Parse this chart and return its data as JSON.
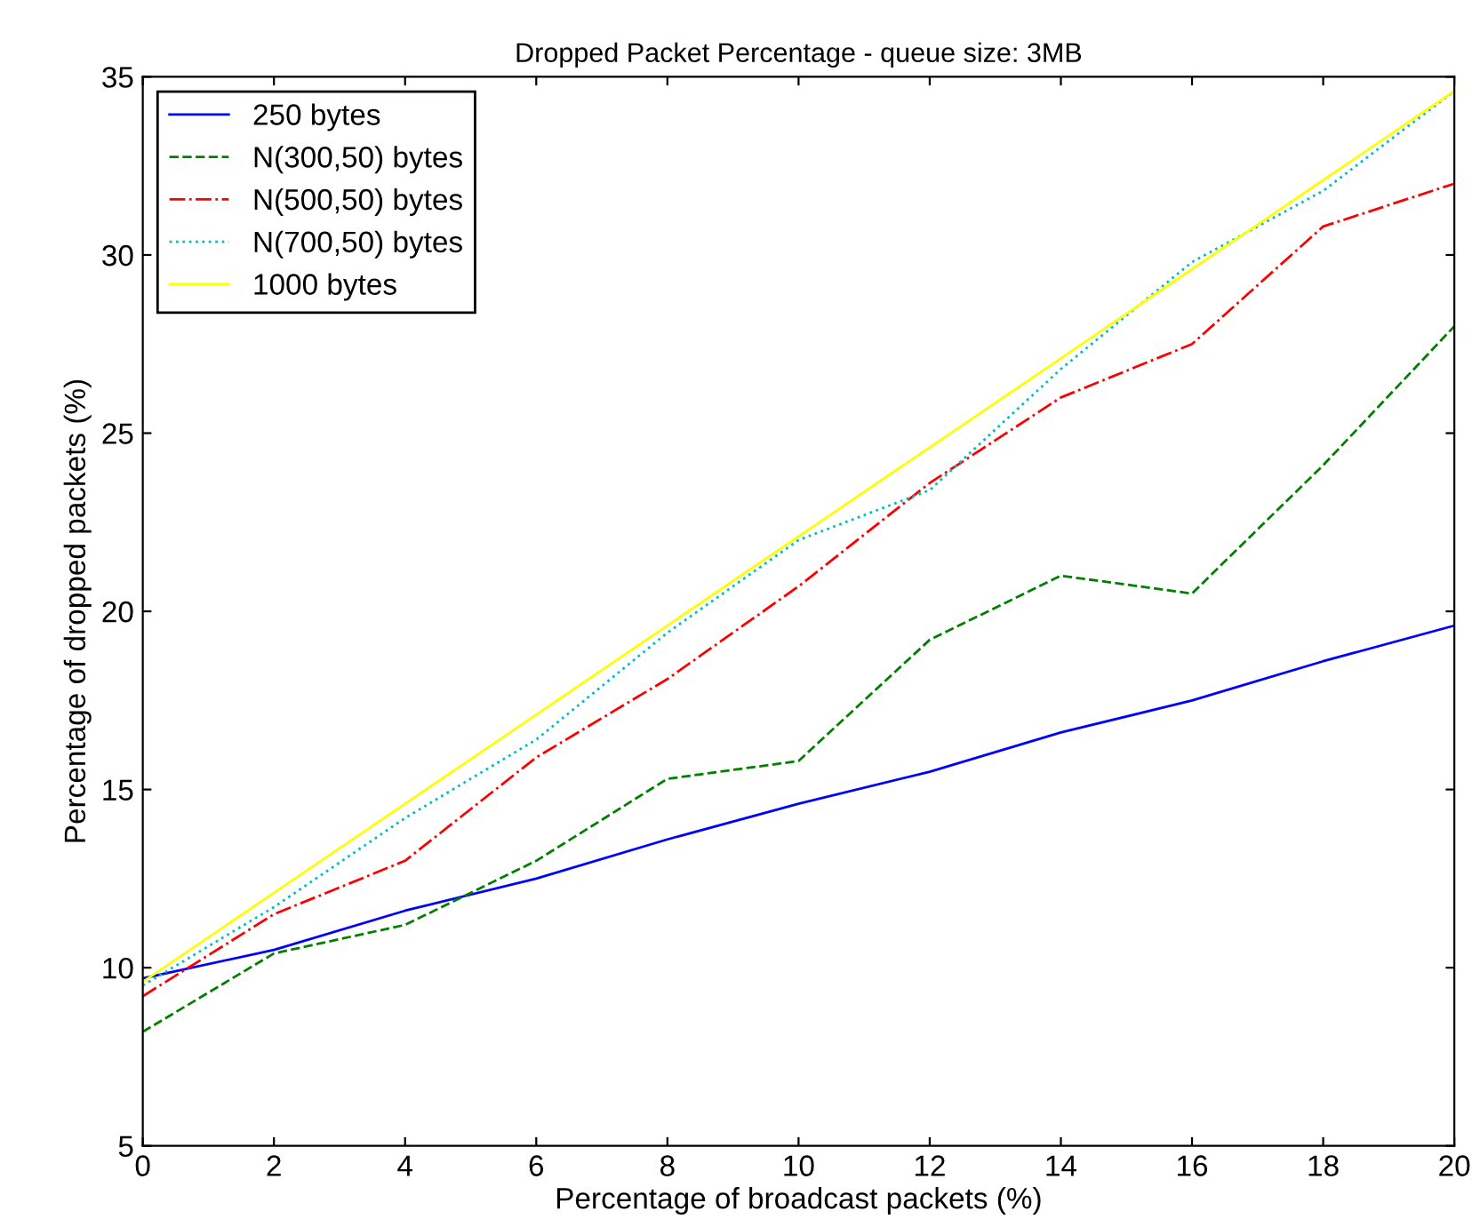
{
  "chart_data": {
    "type": "line",
    "title": "Dropped Packet Percentage - queue size: 3MB",
    "xlabel": "Percentage of broadcast packets (%)",
    "ylabel": "Percentage of dropped packets (%)",
    "x": [
      0,
      2,
      4,
      6,
      8,
      10,
      12,
      14,
      16,
      18,
      20
    ],
    "xlim": [
      0,
      20
    ],
    "xticks": [
      0,
      2,
      4,
      6,
      8,
      10,
      12,
      14,
      16,
      18,
      20
    ],
    "ylim": [
      5,
      35
    ],
    "yticks": [
      5,
      10,
      15,
      20,
      25,
      30,
      35
    ],
    "grid": false,
    "legend": "top left",
    "marker": "none",
    "series": [
      {
        "name": "250 bytes",
        "color": "#0000ff",
        "line_style": "solid",
        "values": [
          9.7,
          10.5,
          11.6,
          12.5,
          13.6,
          14.6,
          15.5,
          16.6,
          17.5,
          18.6,
          19.6
        ]
      },
      {
        "name": "N(300,50) bytes",
        "color": "#008000",
        "line_style": "dashed",
        "values": [
          8.2,
          10.4,
          11.2,
          13.0,
          15.3,
          15.8,
          19.2,
          21.0,
          20.5,
          24.1,
          28.0
        ]
      },
      {
        "name": "N(500,50) bytes",
        "color": "#ff0000",
        "line_style": "dashdot",
        "values": [
          9.2,
          11.5,
          13.0,
          15.9,
          18.1,
          20.7,
          23.6,
          26.0,
          27.5,
          30.8,
          32.0
        ]
      },
      {
        "name": "N(700,50) bytes",
        "color": "#00bfbf",
        "line_style": "dotted",
        "values": [
          9.5,
          11.7,
          14.2,
          16.4,
          19.4,
          22.0,
          23.4,
          26.8,
          29.8,
          31.8,
          34.6
        ]
      },
      {
        "name": "1000 bytes",
        "color": "#ffff00",
        "line_style": "solid",
        "values": [
          9.6,
          12.1,
          14.6,
          17.1,
          19.6,
          22.1,
          24.6,
          27.1,
          29.6,
          32.1,
          34.6
        ]
      }
    ]
  }
}
